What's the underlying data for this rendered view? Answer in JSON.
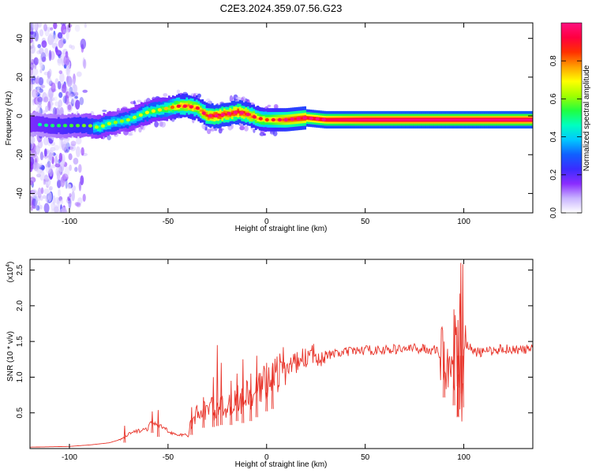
{
  "title": "C2E3.2024.359.07.56.G23",
  "chart_data": [
    {
      "type": "heatmap",
      "xlabel": "Height of straight line (km)",
      "ylabel": "Frequency (Hz)",
      "xlim": [
        -120,
        135
      ],
      "ylim": [
        -50,
        48
      ],
      "xticks": [
        -100,
        -50,
        0,
        50,
        100
      ],
      "yticks": [
        -40,
        -20,
        0,
        20,
        40
      ],
      "colorbar": {
        "label": "Normalized spectral amplitude",
        "ticks": [
          "0.0",
          "0.2",
          "0.4",
          "0.6",
          "0.8"
        ],
        "range": [
          0,
          1
        ],
        "colormap": [
          "#ffffff",
          "#c8b4ff",
          "#8a2cff",
          "#3a2cff",
          "#1060ff",
          "#00c8ff",
          "#00ffc0",
          "#20ff40",
          "#a0ff00",
          "#ffff00",
          "#ffa000",
          "#ff3000",
          "#ff0040",
          "#ff1080"
        ]
      },
      "ridge": {
        "x": [
          -120,
          -110,
          -100,
          -90,
          -85,
          -80,
          -75,
          -70,
          -65,
          -60,
          -55,
          -50,
          -45,
          -40,
          -35,
          -30,
          -25,
          -20,
          -15,
          -10,
          -5,
          0,
          10,
          20,
          30,
          50,
          80,
          90,
          100,
          120,
          135
        ],
        "frequency": [
          -4,
          -5,
          -5,
          -5,
          -6,
          -4,
          -3,
          -2,
          0,
          2,
          3,
          4,
          5,
          5,
          4,
          0,
          0,
          1,
          2,
          1,
          -1,
          -2,
          -2,
          -1,
          -2,
          -2,
          -2,
          -2,
          -2,
          -2,
          -2
        ],
        "amplitude": [
          0.3,
          0.35,
          0.4,
          0.45,
          0.5,
          0.5,
          0.45,
          0.5,
          0.5,
          0.55,
          0.55,
          0.6,
          0.75,
          0.8,
          0.75,
          0.85,
          0.9,
          0.85,
          0.9,
          0.85,
          0.75,
          0.7,
          0.85,
          0.9,
          0.95,
          1.0,
          1.0,
          1.0,
          1.0,
          1.0,
          1.0
        ],
        "noisy_region_x": [
          -120,
          -90
        ]
      }
    },
    {
      "type": "line",
      "xlabel": "Height of straight line (km)",
      "ylabel": "SNR (10 * v/v)",
      "yscale_label": "(x10",
      "yscale_exp": "4",
      "yscale_close": ")",
      "xlim": [
        -120,
        135
      ],
      "ylim": [
        0,
        2.65
      ],
      "xticks": [
        -100,
        -50,
        0,
        50,
        100
      ],
      "yticks": [
        "0.5",
        "1.0",
        "1.5",
        "2.0",
        "2.5"
      ],
      "ytick_values": [
        0.5,
        1.0,
        1.5,
        2.0,
        2.5
      ],
      "color": "#e8342a",
      "series": [
        {
          "x": [
            -120,
            -100,
            -90,
            -80,
            -75,
            -72,
            -70,
            -65,
            -60,
            -58,
            -55,
            -52,
            -50,
            -45,
            -40,
            -38,
            -35,
            -30,
            -28,
            -26,
            -24,
            -22,
            -20,
            -18,
            -15,
            -12,
            -10,
            -8,
            -5,
            -2,
            0,
            5,
            10,
            15,
            20,
            25,
            30,
            40,
            50,
            60,
            70,
            80,
            85,
            90,
            93,
            95,
            96,
            97,
            98,
            99,
            100,
            102,
            105,
            110,
            120,
            130,
            135
          ],
          "y": [
            0.02,
            0.03,
            0.05,
            0.08,
            0.12,
            0.15,
            0.2,
            0.25,
            0.28,
            0.4,
            0.3,
            0.3,
            0.25,
            0.18,
            0.2,
            0.35,
            0.5,
            0.55,
            0.6,
            0.5,
            0.65,
            0.55,
            0.6,
            0.6,
            0.7,
            0.65,
            0.75,
            0.7,
            0.8,
            0.9,
            0.95,
            1.05,
            1.15,
            1.2,
            1.28,
            1.32,
            1.3,
            1.35,
            1.38,
            1.38,
            1.4,
            1.4,
            1.38,
            1.3,
            1.2,
            1.1,
            1.6,
            0.8,
            2.2,
            0.6,
            1.5,
            1.45,
            1.35,
            1.35,
            1.4,
            1.38,
            1.4
          ]
        }
      ],
      "spikes": [
        {
          "x": -72,
          "y": 0.32
        },
        {
          "x": -58,
          "y": 0.52
        },
        {
          "x": -55,
          "y": 0.54
        },
        {
          "x": -38,
          "y": 0.58
        },
        {
          "x": -32,
          "y": 0.72
        },
        {
          "x": -27,
          "y": 1.0
        },
        {
          "x": -25,
          "y": 1.45
        },
        {
          "x": -23,
          "y": 1.2
        },
        {
          "x": -18,
          "y": 0.95
        },
        {
          "x": -15,
          "y": 1.05
        },
        {
          "x": -12,
          "y": 1.25
        },
        {
          "x": -8,
          "y": 1.05
        },
        {
          "x": -5,
          "y": 1.3
        },
        {
          "x": 0,
          "y": 1.2
        },
        {
          "x": 3,
          "y": 1.2
        },
        {
          "x": 90,
          "y": 1.5
        },
        {
          "x": 95,
          "y": 1.95
        },
        {
          "x": 97,
          "y": 1.8
        },
        {
          "x": 98.5,
          "y": 2.6
        },
        {
          "x": 99.5,
          "y": 2.58
        }
      ]
    }
  ]
}
